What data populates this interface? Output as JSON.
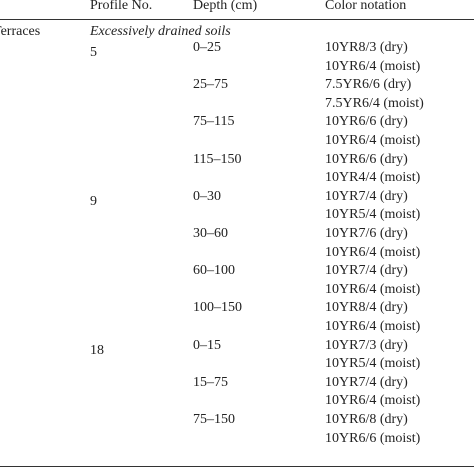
{
  "header": {
    "columns": [
      "Profile No.",
      "Depth (cm)",
      "Color notation"
    ]
  },
  "table": {
    "group": "Terraces",
    "subgroup": "Excessively drained soils",
    "profiles": [
      {
        "number": "5",
        "horizons": [
          {
            "depth": "0–25",
            "colors": [
              "10YR8/3 (dry)",
              "10YR6/4 (moist)"
            ]
          },
          {
            "depth": "25–75",
            "colors": [
              "7.5YR6/6 (dry)",
              "7.5YR6/4 (moist)"
            ]
          },
          {
            "depth": "75–115",
            "colors": [
              "10YR6/6 (dry)",
              "10YR6/4 (moist)"
            ]
          },
          {
            "depth": "115–150",
            "colors": [
              "10YR6/6 (dry)",
              "10YR4/4 (moist)"
            ]
          }
        ]
      },
      {
        "number": "9",
        "horizons": [
          {
            "depth": "0–30",
            "colors": [
              "10YR7/4 (dry)",
              "10YR5/4 (moist)"
            ]
          },
          {
            "depth": "30–60",
            "colors": [
              "10YR7/6 (dry)",
              "10YR6/4 (moist)"
            ]
          },
          {
            "depth": "60–100",
            "colors": [
              "10YR7/4 (dry)",
              "10YR6/4 (moist)"
            ]
          },
          {
            "depth": "100–150",
            "colors": [
              "10YR8/4 (dry)",
              "10YR6/4 (moist)"
            ]
          }
        ]
      },
      {
        "number": "18",
        "horizons": [
          {
            "depth": "0–15",
            "colors": [
              "10YR7/3 (dry)",
              "10YR5/4 (moist)"
            ]
          },
          {
            "depth": "15–75",
            "colors": [
              "10YR7/4 (dry)",
              "10YR6/4 (moist)"
            ]
          },
          {
            "depth": "75–150",
            "colors": [
              "10YR6/8 (dry)",
              "10YR6/6 (moist)"
            ]
          }
        ]
      }
    ]
  }
}
